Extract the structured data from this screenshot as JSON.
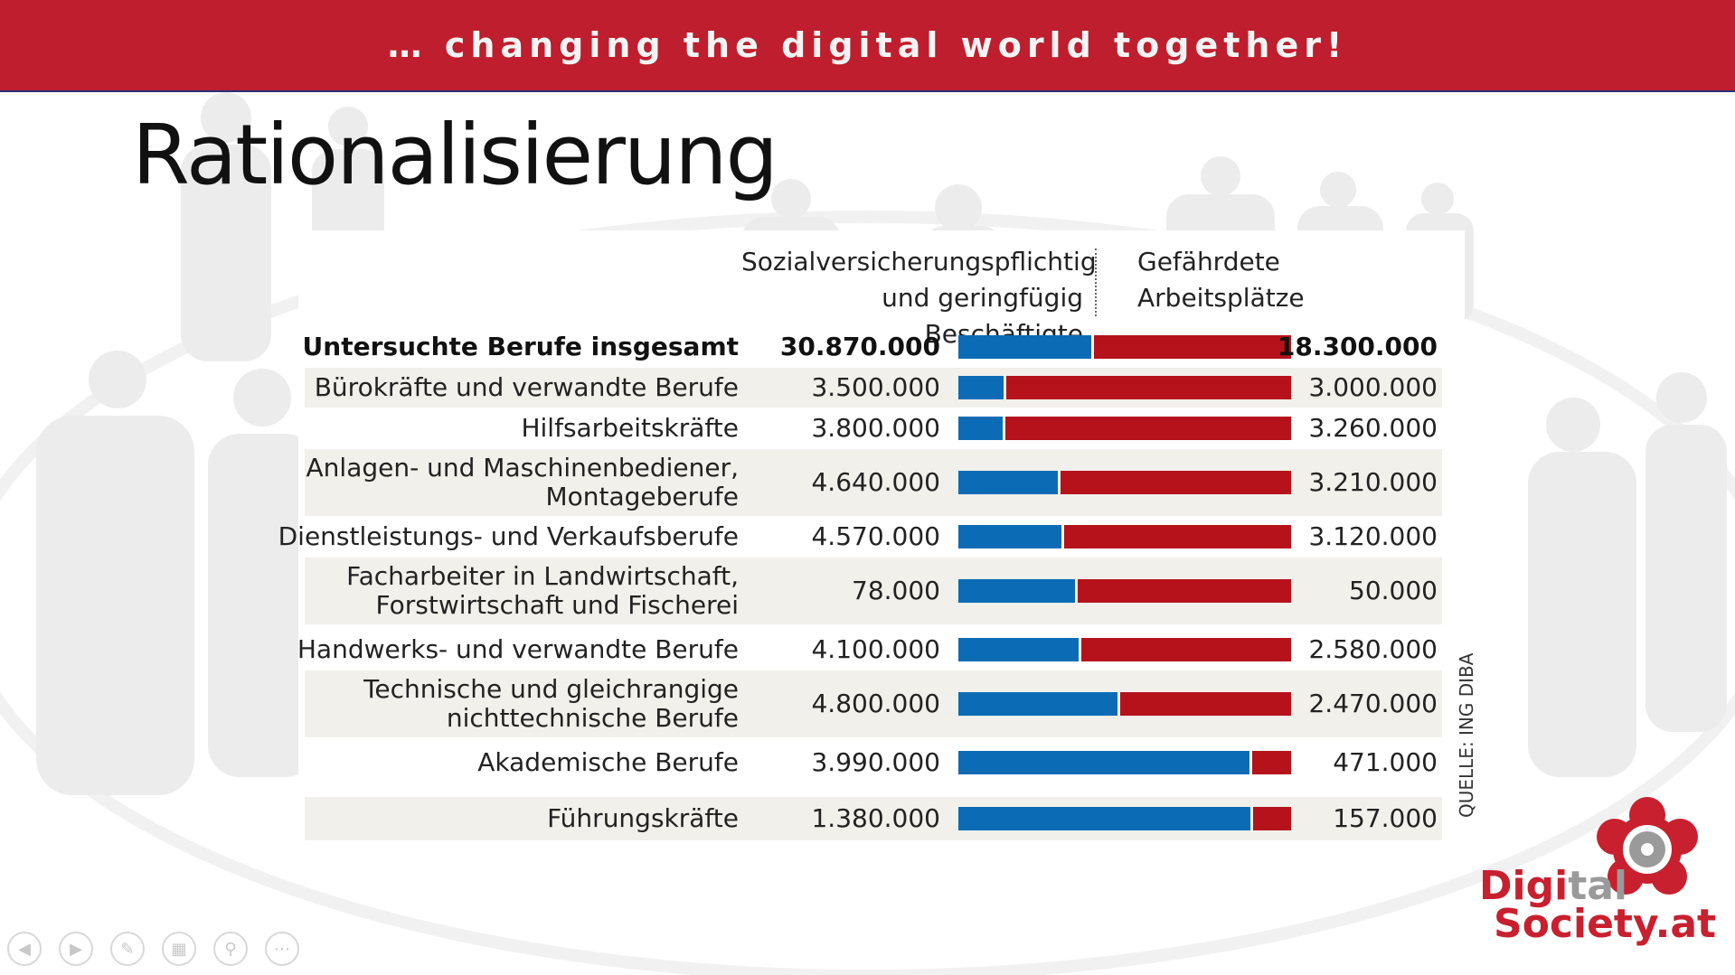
{
  "header": {
    "tagline": "… changing the digital world together!"
  },
  "slide": {
    "title": "Rationalisierung"
  },
  "chart_data": {
    "type": "bar",
    "column_headers": {
      "left": [
        "Sozialversicherungspflichtig",
        "und geringfügig Beschäftigte"
      ],
      "right": [
        "Gefährdete",
        "Arbeitsplätze"
      ]
    },
    "rows": [
      {
        "category": [
          "Untersuchte Berufe insgesamt"
        ],
        "employed": 30870000,
        "employed_label": "30.870.000",
        "at_risk": 18300000,
        "at_risk_label": "18.300.000",
        "bold": true
      },
      {
        "category": [
          "Bürokräfte und verwandte Berufe"
        ],
        "employed": 3500000,
        "employed_label": "3.500.000",
        "at_risk": 3000000,
        "at_risk_label": "3.000.000"
      },
      {
        "category": [
          "Hilfsarbeitskräfte"
        ],
        "employed": 3800000,
        "employed_label": "3.800.000",
        "at_risk": 3260000,
        "at_risk_label": "3.260.000"
      },
      {
        "category": [
          "Anlagen- und Maschinenbediener,",
          "Montageberufe"
        ],
        "employed": 4640000,
        "employed_label": "4.640.000",
        "at_risk": 3210000,
        "at_risk_label": "3.210.000"
      },
      {
        "category": [
          "Dienstleistungs- und Verkaufsberufe"
        ],
        "employed": 4570000,
        "employed_label": "4.570.000",
        "at_risk": 3120000,
        "at_risk_label": "3.120.000"
      },
      {
        "category": [
          "Facharbeiter in Landwirtschaft,",
          "Forstwirtschaft und Fischerei"
        ],
        "employed": 78000,
        "employed_label": "78.000",
        "at_risk": 50000,
        "at_risk_label": "50.000"
      },
      {
        "category": [
          "Handwerks- und verwandte Berufe"
        ],
        "employed": 4100000,
        "employed_label": "4.100.000",
        "at_risk": 2580000,
        "at_risk_label": "2.580.000"
      },
      {
        "category": [
          "Technische und gleichrangige",
          "nichttechnische Berufe"
        ],
        "employed": 4800000,
        "employed_label": "4.800.000",
        "at_risk": 2470000,
        "at_risk_label": "2.470.000"
      },
      {
        "category": [
          "Akademische Berufe"
        ],
        "employed": 3990000,
        "employed_label": "3.990.000",
        "at_risk": 471000,
        "at_risk_label": "471.000"
      },
      {
        "category": [
          "Führungskräfte"
        ],
        "employed": 1380000,
        "employed_label": "1.380.000",
        "at_risk": 157000,
        "at_risk_label": "157.000"
      }
    ],
    "colors": {
      "safe": "#0b6cb5",
      "at_risk": "#b5121b"
    },
    "source": "QUELLE: ING DIBA"
  },
  "logo": {
    "line1_a": "Digi",
    "line1_b": "tal",
    "line2": "Society.at"
  },
  "colors": {
    "header": "#be1e2d",
    "logo_red": "#c8202f",
    "logo_grey": "#9a9a9a"
  },
  "controls": [
    "prev-icon",
    "next-icon",
    "pen-icon",
    "slides-icon",
    "zoom-icon",
    "more-icon"
  ]
}
